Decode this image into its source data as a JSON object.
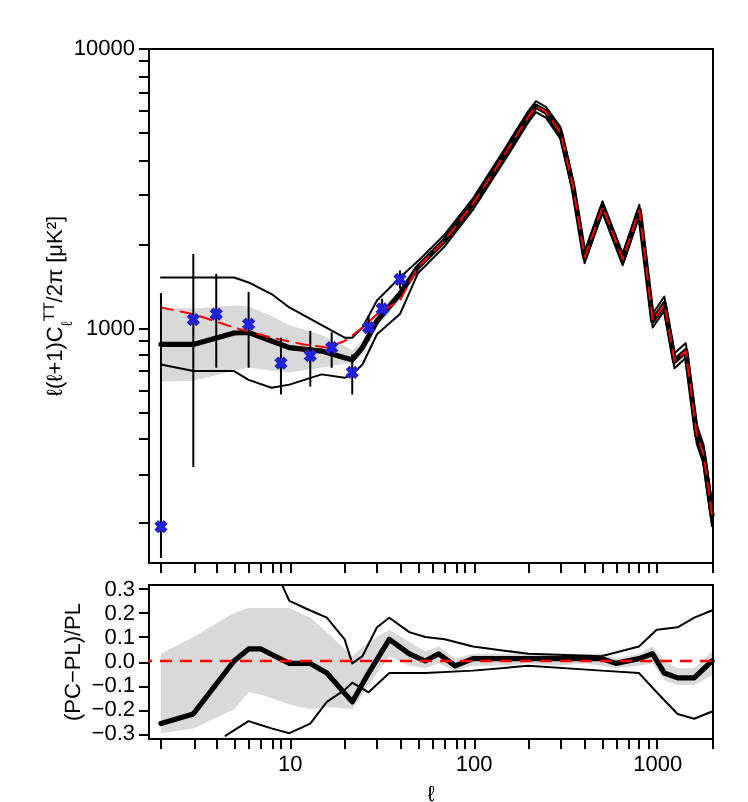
{
  "chart_data": [
    {
      "type": "line",
      "ylabel": "ℓ(ℓ+1)C$_{ℓ}$$^{TT}$/2π [μK²]",
      "log": "xy",
      "tick_labels": "y",
      "xlim": [
        1.7,
        2000
      ],
      "ylim": [
        145,
        10000
      ],
      "xticks": [
        {
          "value": 2,
          "label": null
        },
        {
          "value": 3,
          "label": null
        },
        {
          "value": 4,
          "label": null
        },
        {
          "value": 5,
          "label": null
        },
        {
          "value": 6,
          "label": null
        },
        {
          "value": 7,
          "label": null
        },
        {
          "value": 8,
          "label": null
        },
        {
          "value": 9,
          "label": null
        },
        10,
        {
          "value": 20,
          "label": null
        },
        {
          "value": 30,
          "label": null
        },
        {
          "value": 40,
          "label": null
        },
        {
          "value": 50,
          "label": null
        },
        {
          "value": 60,
          "label": null
        },
        {
          "value": 70,
          "label": null
        },
        {
          "value": 80,
          "label": null
        },
        {
          "value": 90,
          "label": null
        },
        100,
        {
          "value": 200,
          "label": null
        },
        {
          "value": 300,
          "label": null
        },
        {
          "value": 400,
          "label": null
        },
        {
          "value": 500,
          "label": null
        },
        {
          "value": 600,
          "label": null
        },
        {
          "value": 700,
          "label": null
        },
        {
          "value": 800,
          "label": null
        },
        {
          "value": 900,
          "label": null
        },
        1000,
        {
          "value": 2000,
          "label": null
        }
      ],
      "yticks": [
        {
          "value": 200,
          "label": null
        },
        {
          "value": 300,
          "label": null
        },
        {
          "value": 400,
          "label": null
        },
        {
          "value": 500,
          "label": null
        },
        {
          "value": 600,
          "label": null
        },
        {
          "value": 700,
          "label": null
        },
        {
          "value": 800,
          "label": null
        },
        {
          "value": 900,
          "label": null
        },
        1000,
        {
          "value": 2000,
          "label": null
        },
        {
          "value": 3000,
          "label": null
        },
        {
          "value": 4000,
          "label": null
        },
        {
          "value": 5000,
          "label": null
        },
        {
          "value": 6000,
          "label": null
        },
        {
          "value": 7000,
          "label": null
        },
        {
          "value": 8000,
          "label": null
        },
        {
          "value": 9000,
          "label": null
        },
        10000
      ],
      "series": [
        {
          "type": "line",
          "color": "#000000",
          "x": [
            2,
            3,
            5,
            6,
            8,
            10,
            15,
            20,
            22,
            25,
            30,
            40,
            50,
            70,
            100,
            150,
            200,
            220,
            250,
            300,
            350,
            405,
            507,
            653,
            804,
            951,
            1100,
            1250,
            1440,
            1650,
            1800,
            2000
          ],
          "values": [
            871,
            870,
            956,
            960,
            895,
            848,
            824,
            780,
            767,
            848,
            1056,
            1318,
            1643,
            2050,
            2775,
            4200,
            5690,
            6190,
            5900,
            4960,
            3200,
            1785,
            2700,
            1755,
            2630,
            1057,
            1213,
            759,
            824,
            414,
            350,
            213
          ],
          "lower": [
            640,
            645,
            700,
            720,
            700,
            690,
            720,
            740,
            745,
            800,
            1000,
            1260,
            1600,
            2000,
            2720,
            4120,
            5600,
            6100,
            5800,
            4870,
            3130,
            1740,
            2640,
            1710,
            2570,
            1020,
            1170,
            730,
            790,
            395,
            330,
            200
          ],
          "upper": [
            1180,
            1170,
            1200,
            1190,
            1100,
            1020,
            940,
            860,
            830,
            900,
            1110,
            1370,
            1690,
            2100,
            2830,
            4280,
            5780,
            6280,
            6000,
            5050,
            3280,
            1830,
            2760,
            1800,
            2690,
            1095,
            1255,
            790,
            860,
            435,
            370,
            225
          ]
        },
        {
          "type": "line",
          "color": "#000000",
          "x": [
            2,
            3,
            5,
            6,
            8,
            10,
            15,
            20,
            22,
            25,
            30,
            40,
            50,
            70,
            100,
            150,
            200,
            220,
            250,
            300,
            350,
            405,
            507,
            653,
            804,
            951,
            1100,
            1250,
            1440,
            1650,
            1800,
            2000
          ],
          "values": [
            1510,
            1510,
            1510,
            1450,
            1318,
            1180,
            1020,
            920,
            920,
            1000,
            1250,
            1510,
            1725,
            2150,
            2900,
            4400,
            5950,
            6450,
            6150,
            5200,
            3350,
            1870,
            2830,
            1840,
            2750,
            1120,
            1290,
            810,
            880,
            450,
            380,
            235
          ]
        },
        {
          "type": "line",
          "color": "#000000",
          "x": [
            2,
            3,
            5,
            6,
            8,
            10,
            15,
            20,
            22,
            25,
            30,
            40,
            50,
            70,
            100,
            150,
            200,
            220,
            250,
            300,
            350,
            405,
            507,
            653,
            804,
            951,
            1100,
            1250,
            1440,
            1650,
            1800,
            2000
          ],
          "values": [
            738,
            699,
            699,
            650,
            609,
            625,
            680,
            661,
            680,
            738,
            946,
            1117,
            1560,
            1950,
            2640,
            4000,
            5420,
            5900,
            5620,
            4720,
            3050,
            1700,
            2570,
            1670,
            2500,
            1000,
            1150,
            715,
            780,
            385,
            325,
            195
          ]
        },
        {
          "type": "line",
          "color": "#ff0000",
          "line_style": "dashed",
          "x": [
            2,
            3,
            5,
            8,
            12,
            16,
            20,
            25,
            30,
            40,
            50,
            70,
            100,
            150,
            200,
            220,
            250,
            300,
            350,
            405,
            507,
            653,
            804,
            951,
            1100,
            1250,
            1440,
            1650,
            1800,
            2000
          ],
          "values": [
            1180,
            1117,
            1000,
            920,
            870,
            848,
            895,
            1000,
            1117,
            1250,
            1643,
            2050,
            2775,
            4200,
            5690,
            6190,
            5900,
            4960,
            3200,
            1785,
            2700,
            1755,
            2630,
            1057,
            1213,
            759,
            824,
            414,
            350,
            213
          ]
        },
        {
          "type": "scatter",
          "color": "#2222dd",
          "marker": "cross",
          "x": [
            2,
            3,
            4,
            6,
            9,
            13,
            17,
            22,
            27,
            32,
            40
          ],
          "values": [
            194,
            1068,
            1117,
            1028,
            746,
            793,
            848,
            691,
            1000,
            1167,
            1488
          ],
          "errors": [
            [
              150,
              1330
            ],
            [
              317,
              1834
            ],
            [
              718,
              1555
            ],
            [
              718,
              1340
            ],
            [
              576,
              920
            ],
            [
              615,
              973
            ],
            [
              718,
              962
            ],
            [
              576,
              802
            ],
            [
              895,
              1104
            ],
            [
              1086,
              1268
            ],
            [
              1377,
              1600
            ]
          ]
        }
      ]
    },
    {
      "type": "line",
      "xlabel": "ℓ",
      "ylabel": "(PC−PL)/PL",
      "log": "x",
      "xlim": [
        1.7,
        2000
      ],
      "ylim": [
        -0.32,
        0.32
      ],
      "xticks": [
        {
          "value": 2,
          "label": null
        },
        {
          "value": 3,
          "label": null
        },
        {
          "value": 4,
          "label": null
        },
        {
          "value": 5,
          "label": null
        },
        {
          "value": 6,
          "label": null
        },
        {
          "value": 7,
          "label": null
        },
        {
          "value": 8,
          "label": null
        },
        {
          "value": 9,
          "label": null
        },
        10,
        {
          "value": 20,
          "label": null
        },
        {
          "value": 30,
          "label": null
        },
        {
          "value": 40,
          "label": null
        },
        {
          "value": 50,
          "label": null
        },
        {
          "value": 60,
          "label": null
        },
        {
          "value": 70,
          "label": null
        },
        {
          "value": 80,
          "label": null
        },
        {
          "value": 90,
          "label": null
        },
        100,
        {
          "value": 200,
          "label": null
        },
        {
          "value": 300,
          "label": null
        },
        {
          "value": 400,
          "label": null
        },
        {
          "value": 500,
          "label": null
        },
        {
          "value": 600,
          "label": null
        },
        {
          "value": 700,
          "label": null
        },
        {
          "value": 800,
          "label": null
        },
        {
          "value": 900,
          "label": null
        },
        1000,
        {
          "value": 2000,
          "label": null
        }
      ],
      "yticks": [
        {
          "value": -0.3,
          "label": "−0.3"
        },
        {
          "value": -0.2,
          "label": "−0.2"
        },
        {
          "value": -0.1,
          "label": "−0.1"
        },
        {
          "value": 0,
          "label": "0.0"
        },
        0.1,
        0.2,
        0.3
      ],
      "ref_lines": [
        {
          "axis": "y",
          "value": 0,
          "color": "#ff0000",
          "line_style": "dashed"
        }
      ],
      "series": [
        {
          "type": "line",
          "color": "#000000",
          "x": [
            2,
            3,
            5,
            6,
            7,
            10,
            13,
            16,
            22,
            27,
            35,
            45,
            55,
            65,
            80,
            100,
            150,
            200,
            300,
            400,
            500,
            600,
            800,
            950,
            1100,
            1300,
            1600,
            2000
          ],
          "values": [
            -0.26,
            -0.22,
            0,
            0.05,
            0.05,
            -0.01,
            -0.01,
            -0.05,
            -0.17,
            -0.05,
            0.09,
            0.03,
            0,
            0.03,
            -0.02,
            0.01,
            0.01,
            0.01,
            0.01,
            0.01,
            0.01,
            -0.01,
            0.01,
            0.03,
            -0.05,
            -0.07,
            -0.07,
            0
          ],
          "lower": [
            -0.3,
            -0.28,
            -0.2,
            -0.13,
            -0.14,
            -0.18,
            -0.2,
            -0.19,
            -0.2,
            -0.1,
            0.02,
            -0.02,
            -0.03,
            -0.01,
            -0.04,
            -0.02,
            -0.02,
            -0.01,
            -0.02,
            -0.01,
            -0.02,
            -0.03,
            -0.02,
            -0.01,
            -0.08,
            -0.1,
            -0.1,
            -0.06
          ],
          "upper": [
            0.03,
            0.1,
            0.2,
            0.22,
            0.22,
            0.22,
            0.18,
            0.12,
            0.02,
            0.08,
            0.13,
            0.08,
            0.04,
            0.06,
            0.01,
            0.03,
            0.03,
            0.03,
            0.03,
            0.03,
            0.03,
            0.01,
            0.03,
            0.06,
            0,
            -0.03,
            -0.03,
            0.04
          ]
        },
        {
          "type": "line",
          "color": "#000000",
          "x": [
            9.2,
            10,
            13,
            16,
            20,
            22,
            25,
            30,
            35,
            45,
            55,
            70,
            100,
            200,
            500,
            800,
            1000,
            1300,
            1600,
            2000
          ],
          "values": [
            0.31,
            0.25,
            0.21,
            0.18,
            0.09,
            -0.01,
            0.02,
            0.14,
            0.18,
            0.12,
            0.1,
            0.09,
            0.06,
            0.03,
            0.02,
            0.06,
            0.13,
            0.14,
            0.18,
            0.21
          ]
        },
        {
          "type": "line",
          "color": "#000000",
          "x": [
            4.5,
            6,
            8,
            10,
            13,
            16,
            20,
            22,
            27,
            35,
            45,
            55,
            100,
            200,
            500,
            800,
            1000,
            1300,
            1600,
            2000
          ],
          "values": [
            -0.31,
            -0.25,
            -0.28,
            -0.3,
            -0.26,
            -0.17,
            -0.12,
            -0.09,
            -0.13,
            -0.05,
            -0.05,
            -0.05,
            -0.04,
            -0.02,
            -0.04,
            -0.05,
            -0.13,
            -0.22,
            -0.24,
            -0.21
          ]
        }
      ]
    }
  ]
}
